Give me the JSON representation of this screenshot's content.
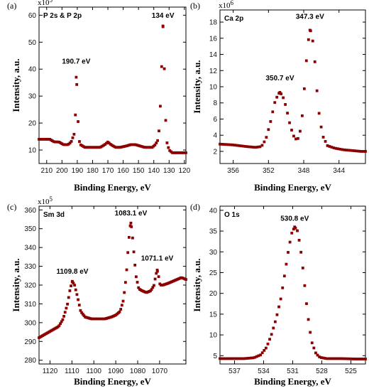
{
  "chart_data": [
    {
      "type": "scatter",
      "panel_label": "(a)",
      "title": "P 2s & P 2p",
      "multiplier": "x10^5",
      "xlabel": "Binding Energy, eV",
      "ylabel": "Intensity, a.u.",
      "xlim": [
        215,
        119
      ],
      "ylim": [
        5,
        63
      ],
      "x_reversed": true,
      "xticks": [
        210,
        200,
        190,
        180,
        170,
        160,
        150,
        140,
        130,
        120
      ],
      "yticks": [
        10,
        20,
        30,
        40,
        50,
        60
      ],
      "color": "#8b0000",
      "annotations": [
        {
          "text": "190.7 eV",
          "x": 190.7,
          "y": 42
        },
        {
          "text": "134 eV",
          "x": 134,
          "y": 59
        }
      ],
      "curve": [
        [
          215,
          14
        ],
        [
          212,
          14
        ],
        [
          208,
          14
        ],
        [
          205,
          13
        ],
        [
          202,
          13
        ],
        [
          199,
          12
        ],
        [
          196,
          12
        ],
        [
          194,
          13
        ],
        [
          192,
          16
        ],
        [
          191,
          25
        ],
        [
          190.7,
          37
        ],
        [
          190.3,
          34
        ],
        [
          189.7,
          24
        ],
        [
          189,
          14
        ],
        [
          188,
          12
        ],
        [
          185,
          11
        ],
        [
          182,
          11
        ],
        [
          178,
          11
        ],
        [
          175,
          11
        ],
        [
          172,
          12
        ],
        [
          170,
          13
        ],
        [
          168,
          12
        ],
        [
          165,
          11
        ],
        [
          162,
          11
        ],
        [
          158,
          11.5
        ],
        [
          155,
          12
        ],
        [
          152,
          12
        ],
        [
          149,
          11.5
        ],
        [
          146,
          11
        ],
        [
          143,
          11
        ],
        [
          141,
          11
        ],
        [
          139,
          12
        ],
        [
          137,
          14
        ],
        [
          136,
          22
        ],
        [
          135,
          38
        ],
        [
          134.4,
          50
        ],
        [
          134,
          56
        ],
        [
          133.6,
          52
        ],
        [
          133,
          38
        ],
        [
          132.3,
          22
        ],
        [
          131.5,
          13
        ],
        [
          130,
          10
        ],
        [
          128,
          9
        ],
        [
          125,
          9
        ],
        [
          122,
          9
        ],
        [
          120,
          9
        ]
      ],
      "n_points": 110
    },
    {
      "type": "scatter",
      "panel_label": "(b)",
      "title": "Ca 2p",
      "multiplier": "x10^6",
      "xlabel": "Binding Energy, eV",
      "ylabel": "Intensity, a.u.",
      "xlim": [
        357.5,
        341
      ],
      "ylim": [
        0.5,
        19.5
      ],
      "x_reversed": true,
      "xticks": [
        356,
        352,
        348,
        344
      ],
      "yticks": [
        2,
        4,
        6,
        8,
        10,
        12,
        14,
        16,
        18
      ],
      "color": "#8b0000",
      "annotations": [
        {
          "text": "350.7 eV",
          "x": 350.7,
          "y": 10.8
        },
        {
          "text": "347.3 eV",
          "x": 347.3,
          "y": 18.4
        }
      ],
      "curve": [
        [
          357.5,
          2.9
        ],
        [
          356,
          2.8
        ],
        [
          354.5,
          2.6
        ],
        [
          353.5,
          2.5
        ],
        [
          352.8,
          2.6
        ],
        [
          352.3,
          3.5
        ],
        [
          351.8,
          5.5
        ],
        [
          351.3,
          8
        ],
        [
          350.9,
          9.1
        ],
        [
          350.7,
          9.3
        ],
        [
          350.4,
          8.9
        ],
        [
          350,
          7.5
        ],
        [
          349.6,
          5.5
        ],
        [
          349.2,
          4
        ],
        [
          348.8,
          3.4
        ],
        [
          348.5,
          3.8
        ],
        [
          348.1,
          7
        ],
        [
          347.8,
          12
        ],
        [
          347.5,
          15.5
        ],
        [
          347.3,
          17
        ],
        [
          347.1,
          16.8
        ],
        [
          346.8,
          14
        ],
        [
          346.5,
          9.5
        ],
        [
          346.2,
          6
        ],
        [
          345.8,
          3.8
        ],
        [
          345.3,
          2.7
        ],
        [
          344.5,
          2.4
        ],
        [
          343.5,
          2.2
        ],
        [
          342.5,
          2.1
        ],
        [
          341.5,
          2
        ]
      ],
      "n_points": 70
    },
    {
      "type": "scatter",
      "panel_label": "(c)",
      "title": "Sm 3d",
      "multiplier": "x10^5",
      "xlabel": "Binding Energy, eV",
      "ylabel": "Intensity, a.u.",
      "xlim": [
        1125,
        1058
      ],
      "ylim": [
        278,
        362
      ],
      "x_reversed": true,
      "xticks": [
        1120,
        1110,
        1100,
        1090,
        1080,
        1070
      ],
      "yticks": [
        280,
        290,
        300,
        310,
        320,
        330,
        340,
        350,
        360
      ],
      "color": "#8b0000",
      "annotations": [
        {
          "text": "1109.8 eV",
          "x": 1109.8,
          "y": 326
        },
        {
          "text": "1083.1 eV",
          "x": 1083.1,
          "y": 357
        },
        {
          "text": "1071.1 eV",
          "x": 1071.1,
          "y": 333
        }
      ],
      "curve": [
        [
          1125,
          292
        ],
        [
          1122,
          294
        ],
        [
          1119,
          296
        ],
        [
          1116,
          298
        ],
        [
          1114,
          302
        ],
        [
          1112,
          310
        ],
        [
          1110.8,
          318
        ],
        [
          1109.8,
          322
        ],
        [
          1108.8,
          320
        ],
        [
          1107.5,
          314
        ],
        [
          1106,
          306
        ],
        [
          1104,
          303
        ],
        [
          1101,
          302
        ],
        [
          1098,
          302
        ],
        [
          1095,
          302
        ],
        [
          1092,
          303
        ],
        [
          1090,
          304
        ],
        [
          1088,
          306
        ],
        [
          1086.5,
          312
        ],
        [
          1085.2,
          325
        ],
        [
          1084.2,
          342
        ],
        [
          1083.5,
          351
        ],
        [
          1083.1,
          353
        ],
        [
          1082.6,
          349
        ],
        [
          1081.8,
          338
        ],
        [
          1080.8,
          325
        ],
        [
          1079.5,
          318
        ],
        [
          1078,
          317
        ],
        [
          1076,
          316
        ],
        [
          1074,
          317
        ],
        [
          1072.5,
          320
        ],
        [
          1071.8,
          325
        ],
        [
          1071.1,
          328
        ],
        [
          1070.5,
          325
        ],
        [
          1069.8,
          320
        ],
        [
          1068.5,
          320
        ],
        [
          1066,
          321
        ],
        [
          1064,
          322
        ],
        [
          1062,
          323
        ],
        [
          1060,
          324
        ],
        [
          1058,
          323
        ]
      ],
      "n_points": 125
    },
    {
      "type": "scatter",
      "panel_label": "(d)",
      "title": "O 1s",
      "multiplier": "",
      "xlabel": "Binding Energy, eV",
      "ylabel": "Intensity, a.u.",
      "xlim": [
        538.5,
        523.5
      ],
      "ylim": [
        3,
        41
      ],
      "x_reversed": true,
      "xticks": [
        537,
        534,
        531,
        528,
        525
      ],
      "yticks": [
        5,
        10,
        15,
        20,
        25,
        30,
        35,
        40
      ],
      "color": "#8b0000",
      "annotations": [
        {
          "text": "530.8 eV",
          "x": 530.8,
          "y": 37.5
        }
      ],
      "curve": [
        [
          538.5,
          4.3
        ],
        [
          537,
          4.3
        ],
        [
          536,
          4.3
        ],
        [
          535,
          4.5
        ],
        [
          534.3,
          5.2
        ],
        [
          533.7,
          7
        ],
        [
          533.2,
          10
        ],
        [
          532.7,
          14
        ],
        [
          532.2,
          19
        ],
        [
          531.8,
          25
        ],
        [
          531.4,
          31
        ],
        [
          531.1,
          34.5
        ],
        [
          530.8,
          36
        ],
        [
          530.5,
          35
        ],
        [
          530.2,
          31
        ],
        [
          529.9,
          25
        ],
        [
          529.6,
          18
        ],
        [
          529.3,
          12
        ],
        [
          529,
          8
        ],
        [
          528.6,
          5.5
        ],
        [
          528.2,
          4.6
        ],
        [
          527.5,
          4.3
        ],
        [
          526,
          4.3
        ],
        [
          524.5,
          4.2
        ],
        [
          523.5,
          4.2
        ]
      ],
      "n_points": 80
    }
  ]
}
